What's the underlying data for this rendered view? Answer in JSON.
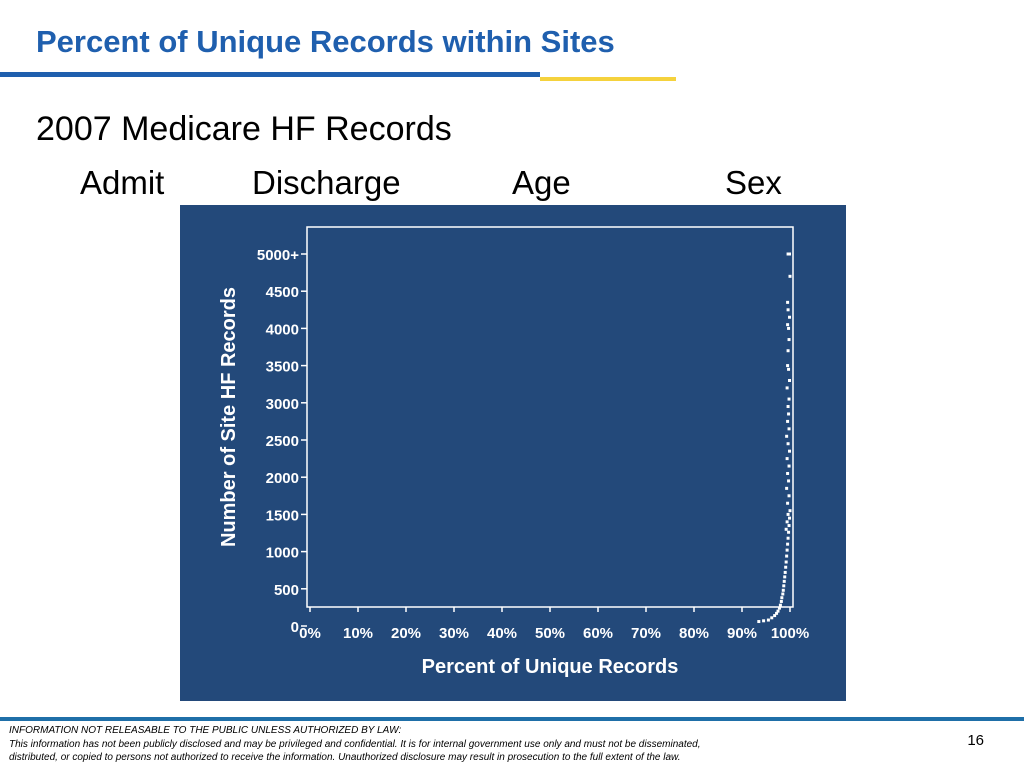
{
  "slide": {
    "title": "Percent of Unique Records within Sites",
    "subtitle": "2007 Medicare HF Records",
    "columns": [
      "Admit",
      "Discharge",
      "Age",
      "Sex"
    ]
  },
  "colors": {
    "title": "#1f5fae",
    "title_rule_blue": "#1f5fae",
    "title_rule_yellow": "#f5d23d",
    "chart_background": "#23497a",
    "chart_foreground": "#ffffff",
    "footer_rule": "#1f6fa8"
  },
  "chart_data": {
    "type": "scatter",
    "title": "",
    "xlabel": "Percent of Unique Records",
    "ylabel": "Number of Site HF Records",
    "xlim": [
      0,
      100
    ],
    "ylim": [
      0,
      5000
    ],
    "x_ticks": [
      "0%",
      "10%",
      "20%",
      "30%",
      "40%",
      "50%",
      "60%",
      "70%",
      "80%",
      "90%",
      "100%"
    ],
    "y_ticks": [
      "0",
      "500",
      "1000",
      "1500",
      "2000",
      "2500",
      "3000",
      "3500",
      "4000",
      "4500",
      "5000+"
    ],
    "grid": false,
    "legend": "none",
    "series": [
      {
        "points": [
          [
            93.5,
            60
          ],
          [
            94.5,
            70
          ],
          [
            95.5,
            80
          ],
          [
            96.2,
            110
          ],
          [
            96.8,
            140
          ],
          [
            97.2,
            170
          ],
          [
            97.5,
            200
          ],
          [
            97.8,
            240
          ],
          [
            98.0,
            280
          ],
          [
            98.2,
            330
          ],
          [
            98.3,
            380
          ],
          [
            98.5,
            430
          ],
          [
            98.6,
            480
          ],
          [
            98.7,
            540
          ],
          [
            98.8,
            600
          ],
          [
            98.9,
            660
          ],
          [
            99.0,
            720
          ],
          [
            99.1,
            790
          ],
          [
            99.2,
            860
          ],
          [
            99.3,
            940
          ],
          [
            99.4,
            1020
          ],
          [
            99.5,
            1100
          ],
          [
            99.6,
            1180
          ],
          [
            99.7,
            1260
          ],
          [
            99.8,
            1350
          ],
          [
            99.9,
            1450
          ],
          [
            100.0,
            1550
          ],
          [
            99.2,
            1300
          ],
          [
            99.4,
            1400
          ],
          [
            99.6,
            1500
          ],
          [
            99.5,
            1650
          ],
          [
            99.8,
            1750
          ],
          [
            99.3,
            1850
          ],
          [
            99.7,
            1950
          ],
          [
            99.5,
            2050
          ],
          [
            99.8,
            2150
          ],
          [
            99.4,
            2250
          ],
          [
            99.9,
            2350
          ],
          [
            99.6,
            2450
          ],
          [
            99.3,
            2550
          ],
          [
            99.8,
            2650
          ],
          [
            99.5,
            2750
          ],
          [
            99.7,
            2850
          ],
          [
            99.6,
            2950
          ],
          [
            99.8,
            3050
          ],
          [
            99.4,
            3200
          ],
          [
            99.9,
            3300
          ],
          [
            99.7,
            3450
          ],
          [
            99.5,
            3500
          ],
          [
            99.6,
            3700
          ],
          [
            99.8,
            3850
          ],
          [
            99.7,
            4000
          ],
          [
            99.5,
            4050
          ],
          [
            99.9,
            4150
          ],
          [
            99.6,
            4250
          ],
          [
            99.5,
            4350
          ],
          [
            100.0,
            4700
          ],
          [
            99.6,
            5000
          ],
          [
            99.9,
            5000
          ]
        ]
      }
    ]
  },
  "footer": {
    "notice_heading": "INFORMATION NOT RELEASABLE TO THE PUBLIC UNLESS AUTHORIZED BY LAW:",
    "notice_line_1": "This information has not been publicly disclosed and may be privileged and confidential.  It is for internal government use only and must not be disseminated,",
    "notice_line_2": "distributed, or copied to persons not authorized to receive the information.  Unauthorized disclosure may result in prosecution to the full extent of the law.",
    "page_number": "16"
  }
}
